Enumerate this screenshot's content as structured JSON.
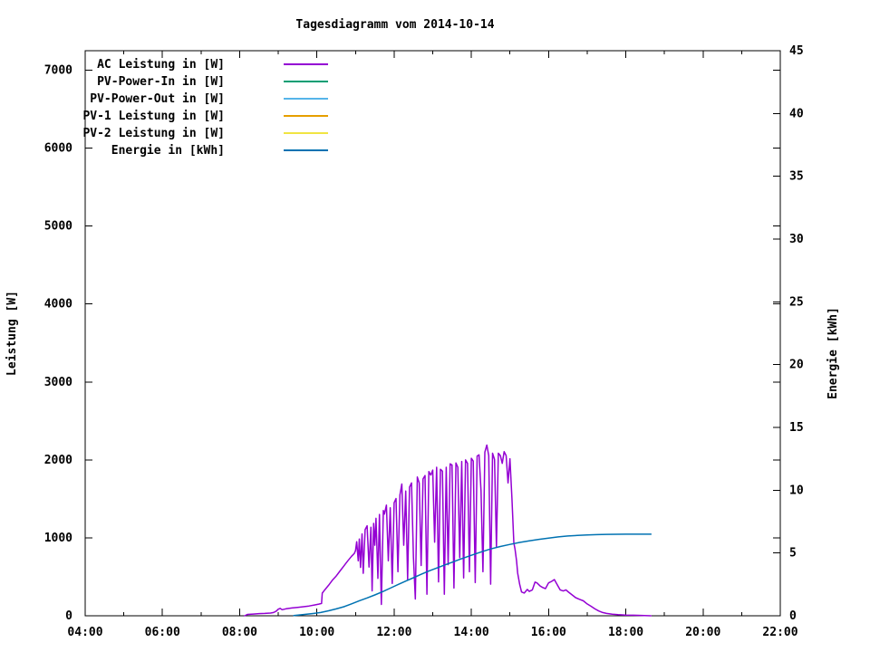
{
  "chart_data": {
    "type": "line",
    "title": "Tagesdiagramm vom 2014-10-14",
    "x_axis": {
      "range_hours": [
        4,
        22
      ],
      "major_tick_hours": [
        4,
        6,
        8,
        10,
        12,
        14,
        16,
        18,
        20,
        22
      ],
      "major_tick_labels": [
        "04:00",
        "06:00",
        "08:00",
        "10:00",
        "12:00",
        "14:00",
        "16:00",
        "18:00",
        "20:00",
        "22:00"
      ],
      "minor_tick_hours": [
        5,
        7,
        9,
        11,
        13,
        15,
        17,
        19,
        21
      ]
    },
    "y_axis": {
      "label": "Leistung [W]",
      "range": [
        0,
        7250
      ],
      "tick_values": [
        0,
        1000,
        2000,
        3000,
        4000,
        5000,
        6000,
        7000
      ],
      "tick_labels": [
        "0",
        "1000",
        "2000",
        "3000",
        "4000",
        "5000",
        "6000",
        "7000"
      ]
    },
    "y2_axis": {
      "label": "Energie [kWh]",
      "range": [
        0,
        45
      ],
      "tick_values": [
        0,
        5,
        10,
        15,
        20,
        25,
        30,
        35,
        40,
        45
      ],
      "tick_labels": [
        "0",
        "5",
        "10",
        "15",
        "20",
        "25",
        "30",
        "35",
        "40",
        "45"
      ]
    },
    "grid": false,
    "legend_position": "top-left-inside",
    "legend": [
      {
        "label": "AC Leistung in [W]",
        "color": "#9400d3"
      },
      {
        "label": "PV-Power-In in [W]",
        "color": "#009e73"
      },
      {
        "label": "PV-Power-Out in [W]",
        "color": "#56b4e9"
      },
      {
        "label": "PV-1 Leistung in [W]",
        "color": "#e69f00"
      },
      {
        "label": "PV-2 Leistung in [W]",
        "color": "#f0e442"
      },
      {
        "label": "Energie in [kWh]",
        "color": "#0072b2"
      }
    ],
    "series": [
      {
        "name": "AC Leistung in [W]",
        "axis": "y",
        "color": "#9400d3",
        "points": [
          [
            8.13,
            0
          ],
          [
            8.2,
            18
          ],
          [
            8.35,
            22
          ],
          [
            8.5,
            28
          ],
          [
            8.65,
            30
          ],
          [
            8.8,
            35
          ],
          [
            8.88,
            42
          ],
          [
            8.95,
            60
          ],
          [
            9.0,
            85
          ],
          [
            9.05,
            95
          ],
          [
            9.1,
            78
          ],
          [
            9.2,
            90
          ],
          [
            9.35,
            100
          ],
          [
            9.5,
            108
          ],
          [
            9.65,
            116
          ],
          [
            9.8,
            126
          ],
          [
            9.95,
            140
          ],
          [
            10.05,
            150
          ],
          [
            10.12,
            158
          ],
          [
            10.14,
            290
          ],
          [
            10.2,
            330
          ],
          [
            10.3,
            390
          ],
          [
            10.4,
            455
          ],
          [
            10.5,
            510
          ],
          [
            10.6,
            575
          ],
          [
            10.7,
            640
          ],
          [
            10.8,
            705
          ],
          [
            10.9,
            765
          ],
          [
            10.97,
            800
          ],
          [
            11.0,
            835
          ],
          [
            11.03,
            950
          ],
          [
            11.07,
            705
          ],
          [
            11.1,
            985
          ],
          [
            11.13,
            620
          ],
          [
            11.17,
            1050
          ],
          [
            11.2,
            545
          ],
          [
            11.25,
            1105
          ],
          [
            11.3,
            1155
          ],
          [
            11.35,
            625
          ],
          [
            11.4,
            1135
          ],
          [
            11.43,
            320
          ],
          [
            11.47,
            1185
          ],
          [
            11.5,
            905
          ],
          [
            11.53,
            1250
          ],
          [
            11.58,
            480
          ],
          [
            11.62,
            1300
          ],
          [
            11.67,
            145
          ],
          [
            11.72,
            1350
          ],
          [
            11.75,
            1305
          ],
          [
            11.8,
            1420
          ],
          [
            11.85,
            705
          ],
          [
            11.9,
            1385
          ],
          [
            11.95,
            415
          ],
          [
            12.0,
            1450
          ],
          [
            12.05,
            1505
          ],
          [
            12.1,
            565
          ],
          [
            12.15,
            1550
          ],
          [
            12.2,
            1690
          ],
          [
            12.25,
            905
          ],
          [
            12.3,
            1600
          ],
          [
            12.35,
            465
          ],
          [
            12.4,
            1650
          ],
          [
            12.45,
            1705
          ],
          [
            12.5,
            755
          ],
          [
            12.55,
            215
          ],
          [
            12.6,
            1780
          ],
          [
            12.65,
            1705
          ],
          [
            12.7,
            645
          ],
          [
            12.75,
            1755
          ],
          [
            12.8,
            1800
          ],
          [
            12.85,
            275
          ],
          [
            12.9,
            1850
          ],
          [
            12.95,
            1805
          ],
          [
            13.0,
            1870
          ],
          [
            13.05,
            945
          ],
          [
            13.1,
            1905
          ],
          [
            13.15,
            435
          ],
          [
            13.2,
            1880
          ],
          [
            13.25,
            1855
          ],
          [
            13.3,
            275
          ],
          [
            13.35,
            1905
          ],
          [
            13.4,
            655
          ],
          [
            13.45,
            1950
          ],
          [
            13.5,
            1935
          ],
          [
            13.55,
            355
          ],
          [
            13.6,
            1960
          ],
          [
            13.65,
            1905
          ],
          [
            13.7,
            745
          ],
          [
            13.75,
            1980
          ],
          [
            13.8,
            485
          ],
          [
            13.85,
            2000
          ],
          [
            13.9,
            1955
          ],
          [
            13.95,
            565
          ],
          [
            14.0,
            2020
          ],
          [
            14.05,
            1985
          ],
          [
            14.1,
            425
          ],
          [
            14.15,
            2050
          ],
          [
            14.2,
            2065
          ],
          [
            14.25,
            1600
          ],
          [
            14.3,
            565
          ],
          [
            14.35,
            2100
          ],
          [
            14.4,
            2190
          ],
          [
            14.45,
            2055
          ],
          [
            14.5,
            405
          ],
          [
            14.55,
            2085
          ],
          [
            14.6,
            2005
          ],
          [
            14.65,
            885
          ],
          [
            14.7,
            2085
          ],
          [
            14.75,
            2055
          ],
          [
            14.8,
            1955
          ],
          [
            14.85,
            2105
          ],
          [
            14.9,
            2055
          ],
          [
            14.95,
            1705
          ],
          [
            15.0,
            2015
          ],
          [
            15.05,
            1505
          ],
          [
            15.1,
            935
          ],
          [
            15.13,
            855
          ],
          [
            15.17,
            705
          ],
          [
            15.2,
            550
          ],
          [
            15.25,
            405
          ],
          [
            15.3,
            305
          ],
          [
            15.37,
            292
          ],
          [
            15.45,
            338
          ],
          [
            15.5,
            312
          ],
          [
            15.58,
            332
          ],
          [
            15.65,
            432
          ],
          [
            15.7,
            422
          ],
          [
            15.78,
            382
          ],
          [
            15.85,
            362
          ],
          [
            15.92,
            348
          ],
          [
            16.0,
            422
          ],
          [
            16.08,
            442
          ],
          [
            16.15,
            465
          ],
          [
            16.22,
            402
          ],
          [
            16.3,
            332
          ],
          [
            16.38,
            318
          ],
          [
            16.45,
            332
          ],
          [
            16.52,
            302
          ],
          [
            16.6,
            272
          ],
          [
            16.7,
            232
          ],
          [
            16.8,
            212
          ],
          [
            16.9,
            192
          ],
          [
            17.0,
            152
          ],
          [
            17.1,
            122
          ],
          [
            17.2,
            88
          ],
          [
            17.3,
            62
          ],
          [
            17.4,
            42
          ],
          [
            17.5,
            30
          ],
          [
            17.65,
            20
          ],
          [
            17.8,
            14
          ],
          [
            18.0,
            9
          ],
          [
            18.2,
            7
          ],
          [
            18.4,
            5
          ],
          [
            18.65,
            0
          ]
        ]
      },
      {
        "name": "Energie in [kWh]",
        "axis": "y2",
        "color": "#0072b2",
        "points": [
          [
            9.4,
            0.02
          ],
          [
            9.6,
            0.08
          ],
          [
            9.9,
            0.18
          ],
          [
            10.1,
            0.26
          ],
          [
            10.3,
            0.4
          ],
          [
            10.5,
            0.55
          ],
          [
            10.7,
            0.72
          ],
          [
            10.9,
            0.95
          ],
          [
            11.1,
            1.2
          ],
          [
            11.3,
            1.42
          ],
          [
            11.5,
            1.66
          ],
          [
            11.7,
            1.92
          ],
          [
            11.9,
            2.2
          ],
          [
            12.1,
            2.48
          ],
          [
            12.3,
            2.76
          ],
          [
            12.5,
            3.03
          ],
          [
            12.7,
            3.3
          ],
          [
            12.9,
            3.56
          ],
          [
            13.1,
            3.8
          ],
          [
            13.3,
            4.03
          ],
          [
            13.5,
            4.26
          ],
          [
            13.75,
            4.55
          ],
          [
            14.0,
            4.82
          ],
          [
            14.25,
            5.08
          ],
          [
            14.5,
            5.32
          ],
          [
            14.75,
            5.52
          ],
          [
            15.0,
            5.68
          ],
          [
            15.25,
            5.84
          ],
          [
            15.5,
            5.97
          ],
          [
            15.75,
            6.09
          ],
          [
            16.0,
            6.19
          ],
          [
            16.25,
            6.28
          ],
          [
            16.5,
            6.35
          ],
          [
            16.75,
            6.4
          ],
          [
            17.0,
            6.44
          ],
          [
            17.25,
            6.46
          ],
          [
            17.5,
            6.48
          ],
          [
            17.75,
            6.49
          ],
          [
            18.0,
            6.5
          ],
          [
            18.3,
            6.5
          ],
          [
            18.65,
            6.5
          ]
        ]
      }
    ]
  }
}
